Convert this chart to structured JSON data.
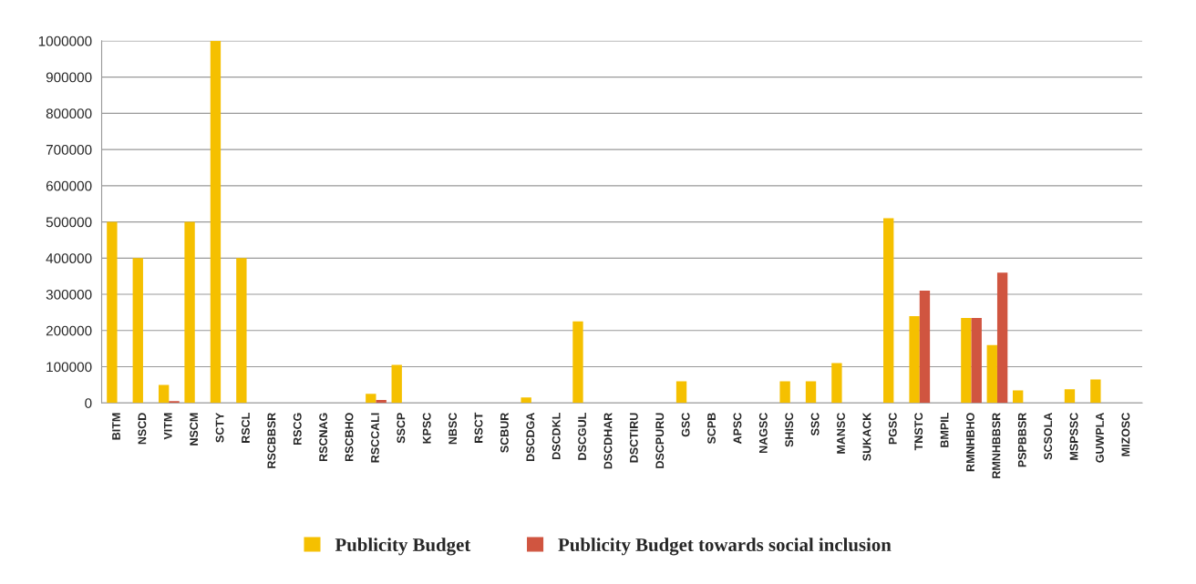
{
  "chart_data": {
    "type": "bar",
    "categories": [
      "BITM",
      "NSCD",
      "VITM",
      "NSCM",
      "SCTY",
      "RSCL",
      "RSCBBSR",
      "RSCG",
      "RSCNAG",
      "RSCBHO",
      "RSCCALI",
      "SSCP",
      "KPSC",
      "NBSC",
      "RSCT",
      "SCBUR",
      "DSCDGA",
      "DSCDKL",
      "DSCGUL",
      "DSCDHAR",
      "DSCTIRU",
      "DSCPURU",
      "GSC",
      "SCPB",
      "APSC",
      "NAGSC",
      "SHISC",
      "SSC",
      "MANSC",
      "SUKACK",
      "PGSC",
      "TNSTC",
      "BMPIL",
      "RMNHBHO",
      "RMNHBBSR",
      "PSPBBSR",
      "SCSOLA",
      "MSPSSC",
      "GUWPLA",
      "MIZOSC"
    ],
    "series": [
      {
        "name": "Publicity Budget",
        "color": "#f5c000",
        "values": [
          500000,
          400000,
          50000,
          500000,
          1000000,
          400000,
          0,
          0,
          0,
          0,
          25000,
          105000,
          0,
          0,
          0,
          0,
          15000,
          0,
          225000,
          0,
          0,
          0,
          60000,
          0,
          0,
          0,
          60000,
          60000,
          110000,
          0,
          510000,
          240000,
          0,
          235000,
          160000,
          35000,
          0,
          38000,
          65000,
          0
        ]
      },
      {
        "name": "Publicity Budget towards social inclusion",
        "color": "#d05540",
        "values": [
          0,
          0,
          5000,
          0,
          0,
          0,
          0,
          0,
          0,
          0,
          8000,
          0,
          0,
          0,
          0,
          0,
          0,
          0,
          0,
          0,
          0,
          0,
          0,
          0,
          0,
          0,
          0,
          0,
          0,
          0,
          0,
          310000,
          0,
          235000,
          360000,
          0,
          0,
          0,
          0,
          0
        ]
      }
    ],
    "ylim": [
      0,
      1000000
    ],
    "yticks": [
      0,
      100000,
      200000,
      300000,
      400000,
      500000,
      600000,
      700000,
      800000,
      900000,
      1000000
    ],
    "grid": "y",
    "legend": "bottom"
  }
}
